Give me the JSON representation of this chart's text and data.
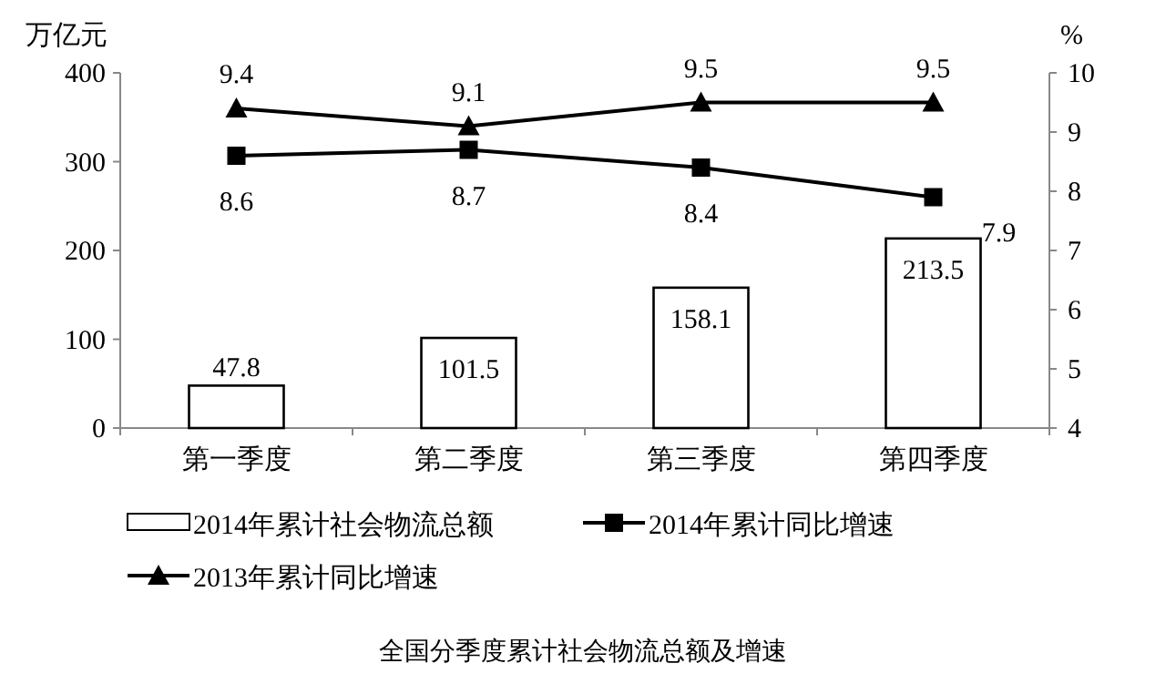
{
  "chart_data": {
    "type": "bar",
    "title": "全国分季度累计社会物流总额及增速",
    "ylabel": "万亿元",
    "y2label": "%",
    "categories": [
      "第一季度",
      "第二季度",
      "第三季度",
      "第四季度"
    ],
    "series": [
      {
        "name": "2014年累计社会物流总额",
        "color": "#ffffff",
        "values": [
          47.8,
          101.5,
          158.1,
          213.5
        ]
      },
      {
        "name": "2014年累计同比增速",
        "type": "line",
        "axis": "y2",
        "marker": "square",
        "color": "#000000",
        "values": [
          8.6,
          8.7,
          8.4,
          7.9
        ]
      },
      {
        "name": "2013年累计同比增速",
        "type": "line",
        "axis": "y2",
        "marker": "triangle",
        "color": "#000000",
        "values": [
          9.4,
          9.1,
          9.5,
          9.5
        ]
      }
    ],
    "ylim": [
      0,
      400
    ],
    "yticks": [
      0,
      100,
      200,
      300,
      400
    ],
    "y2lim": [
      4,
      10
    ],
    "y2ticks": [
      4,
      5,
      6,
      7,
      8,
      9,
      10
    ],
    "data_labels": true,
    "legend": "bottom",
    "grid": false
  }
}
